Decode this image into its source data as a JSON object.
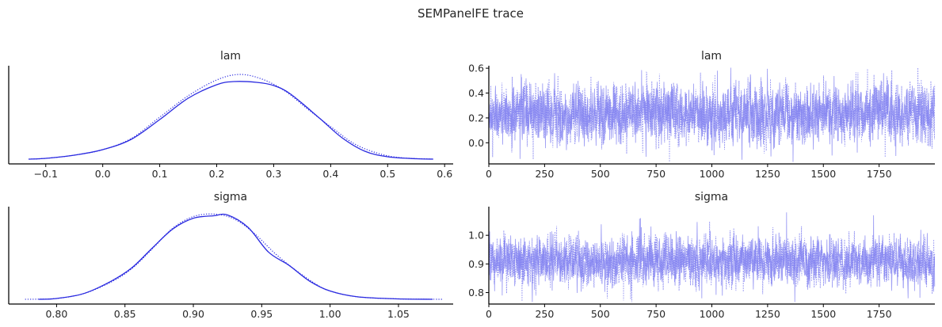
{
  "figure": {
    "title": "SEMPanelFE trace"
  },
  "colors": {
    "kde_line": "#2a2ae0",
    "trace_line": "#8080f0",
    "axis": "#000000",
    "text": "#262626",
    "background": "#ffffff"
  },
  "chart_data": [
    {
      "type": "line",
      "title": "lam",
      "plot": "kde",
      "xlabel": "",
      "ylabel": "",
      "xlim": [
        -0.165,
        0.615
      ],
      "ylim": [
        0,
        1.18
      ],
      "x_ticks": [
        -0.1,
        0.0,
        0.1,
        0.2,
        0.3,
        0.4,
        0.5,
        0.6
      ],
      "x_tick_labels": [
        "−0.1",
        "0.0",
        "0.1",
        "0.2",
        "0.3",
        "0.4",
        "0.5",
        "0.6"
      ],
      "y_ticks": [],
      "grid": false,
      "series": [
        {
          "style": "solid",
          "x": [
            -0.13,
            -0.1,
            -0.05,
            0.0,
            0.05,
            0.1,
            0.15,
            0.2,
            0.23,
            0.27,
            0.3,
            0.33,
            0.38,
            0.42,
            0.46,
            0.5,
            0.55,
            0.58
          ],
          "y": [
            0.0,
            0.01,
            0.05,
            0.12,
            0.25,
            0.5,
            0.77,
            0.94,
            0.98,
            0.97,
            0.93,
            0.82,
            0.52,
            0.27,
            0.1,
            0.03,
            0.005,
            0.0
          ]
        },
        {
          "style": "dotted",
          "x": [
            -0.13,
            -0.1,
            -0.05,
            0.0,
            0.05,
            0.1,
            0.15,
            0.2,
            0.24,
            0.28,
            0.32,
            0.36,
            0.4,
            0.44,
            0.48,
            0.52,
            0.58
          ],
          "y": [
            0.0,
            0.01,
            0.05,
            0.12,
            0.26,
            0.53,
            0.8,
            1.0,
            1.07,
            1.01,
            0.86,
            0.63,
            0.41,
            0.2,
            0.08,
            0.02,
            0.0
          ]
        }
      ]
    },
    {
      "type": "line",
      "title": "lam",
      "plot": "trace",
      "xlabel": "",
      "ylabel": "",
      "xlim": [
        0,
        2000
      ],
      "ylim": [
        -0.17,
        0.62
      ],
      "x_ticks": [
        0,
        250,
        500,
        750,
        1000,
        1250,
        1500,
        1750
      ],
      "x_tick_labels": [
        "0",
        "250",
        "500",
        "750",
        "1000",
        "1250",
        "1500",
        "1750"
      ],
      "y_ticks": [
        0.0,
        0.2,
        0.4,
        0.6
      ],
      "y_tick_labels": [
        "0.0",
        "0.2",
        "0.4",
        "0.6"
      ],
      "grid": false,
      "draws": 2000,
      "center": 0.23,
      "spread": 0.11,
      "extremes": [
        [
          1025,
          0.58
        ],
        [
          295,
          0.56
        ],
        [
          140,
          -0.13
        ],
        [
          1010,
          -0.1
        ],
        [
          1265,
          -0.11
        ],
        [
          1770,
          0.56
        ]
      ],
      "series": [
        {
          "style": "solid"
        },
        {
          "style": "dotted"
        }
      ]
    },
    {
      "type": "line",
      "title": "sigma",
      "plot": "kde",
      "xlabel": "",
      "ylabel": "",
      "xlim": [
        0.765,
        1.09
      ],
      "ylim": [
        0,
        1.12
      ],
      "x_ticks": [
        0.8,
        0.85,
        0.9,
        0.95,
        1.0,
        1.05
      ],
      "x_tick_labels": [
        "0.80",
        "0.85",
        "0.90",
        "0.95",
        "1.00",
        "1.05"
      ],
      "y_ticks": [],
      "grid": false,
      "series": [
        {
          "style": "solid",
          "x": [
            0.787,
            0.8,
            0.82,
            0.84,
            0.855,
            0.87,
            0.885,
            0.9,
            0.915,
            0.925,
            0.94,
            0.955,
            0.97,
            0.985,
            1.0,
            1.02,
            1.05,
            1.075
          ],
          "y": [
            0.0,
            0.01,
            0.07,
            0.22,
            0.38,
            0.62,
            0.85,
            0.98,
            1.01,
            1.02,
            0.87,
            0.57,
            0.41,
            0.22,
            0.1,
            0.03,
            0.005,
            0.0
          ]
        },
        {
          "style": "dotted",
          "x": [
            0.777,
            0.8,
            0.82,
            0.84,
            0.855,
            0.87,
            0.885,
            0.9,
            0.915,
            0.93,
            0.945,
            0.96,
            0.975,
            0.99,
            1.0,
            1.02,
            1.05,
            1.082
          ],
          "y": [
            0.0,
            0.01,
            0.07,
            0.21,
            0.37,
            0.61,
            0.86,
            1.0,
            1.03,
            0.97,
            0.79,
            0.55,
            0.35,
            0.18,
            0.1,
            0.03,
            0.005,
            0.0
          ]
        }
      ]
    },
    {
      "type": "line",
      "title": "sigma",
      "plot": "trace",
      "xlabel": "",
      "ylabel": "",
      "xlim": [
        0,
        2000
      ],
      "ylim": [
        0.76,
        1.1
      ],
      "x_ticks": [
        0,
        250,
        500,
        750,
        1000,
        1250,
        1500,
        1750
      ],
      "x_tick_labels": [
        "0",
        "250",
        "500",
        "750",
        "1000",
        "1250",
        "1500",
        "1750"
      ],
      "y_ticks": [
        0.8,
        0.9,
        1.0
      ],
      "y_tick_labels": [
        "0.8",
        "0.9",
        "1.0"
      ],
      "grid": false,
      "draws": 2000,
      "center": 0.91,
      "spread": 0.04,
      "extremes": [
        [
          1335,
          1.08
        ],
        [
          1725,
          1.07
        ],
        [
          680,
          1.06
        ],
        [
          955,
          0.78
        ],
        [
          1880,
          0.78
        ],
        [
          60,
          0.79
        ]
      ],
      "series": [
        {
          "style": "solid"
        },
        {
          "style": "dotted"
        }
      ]
    }
  ]
}
